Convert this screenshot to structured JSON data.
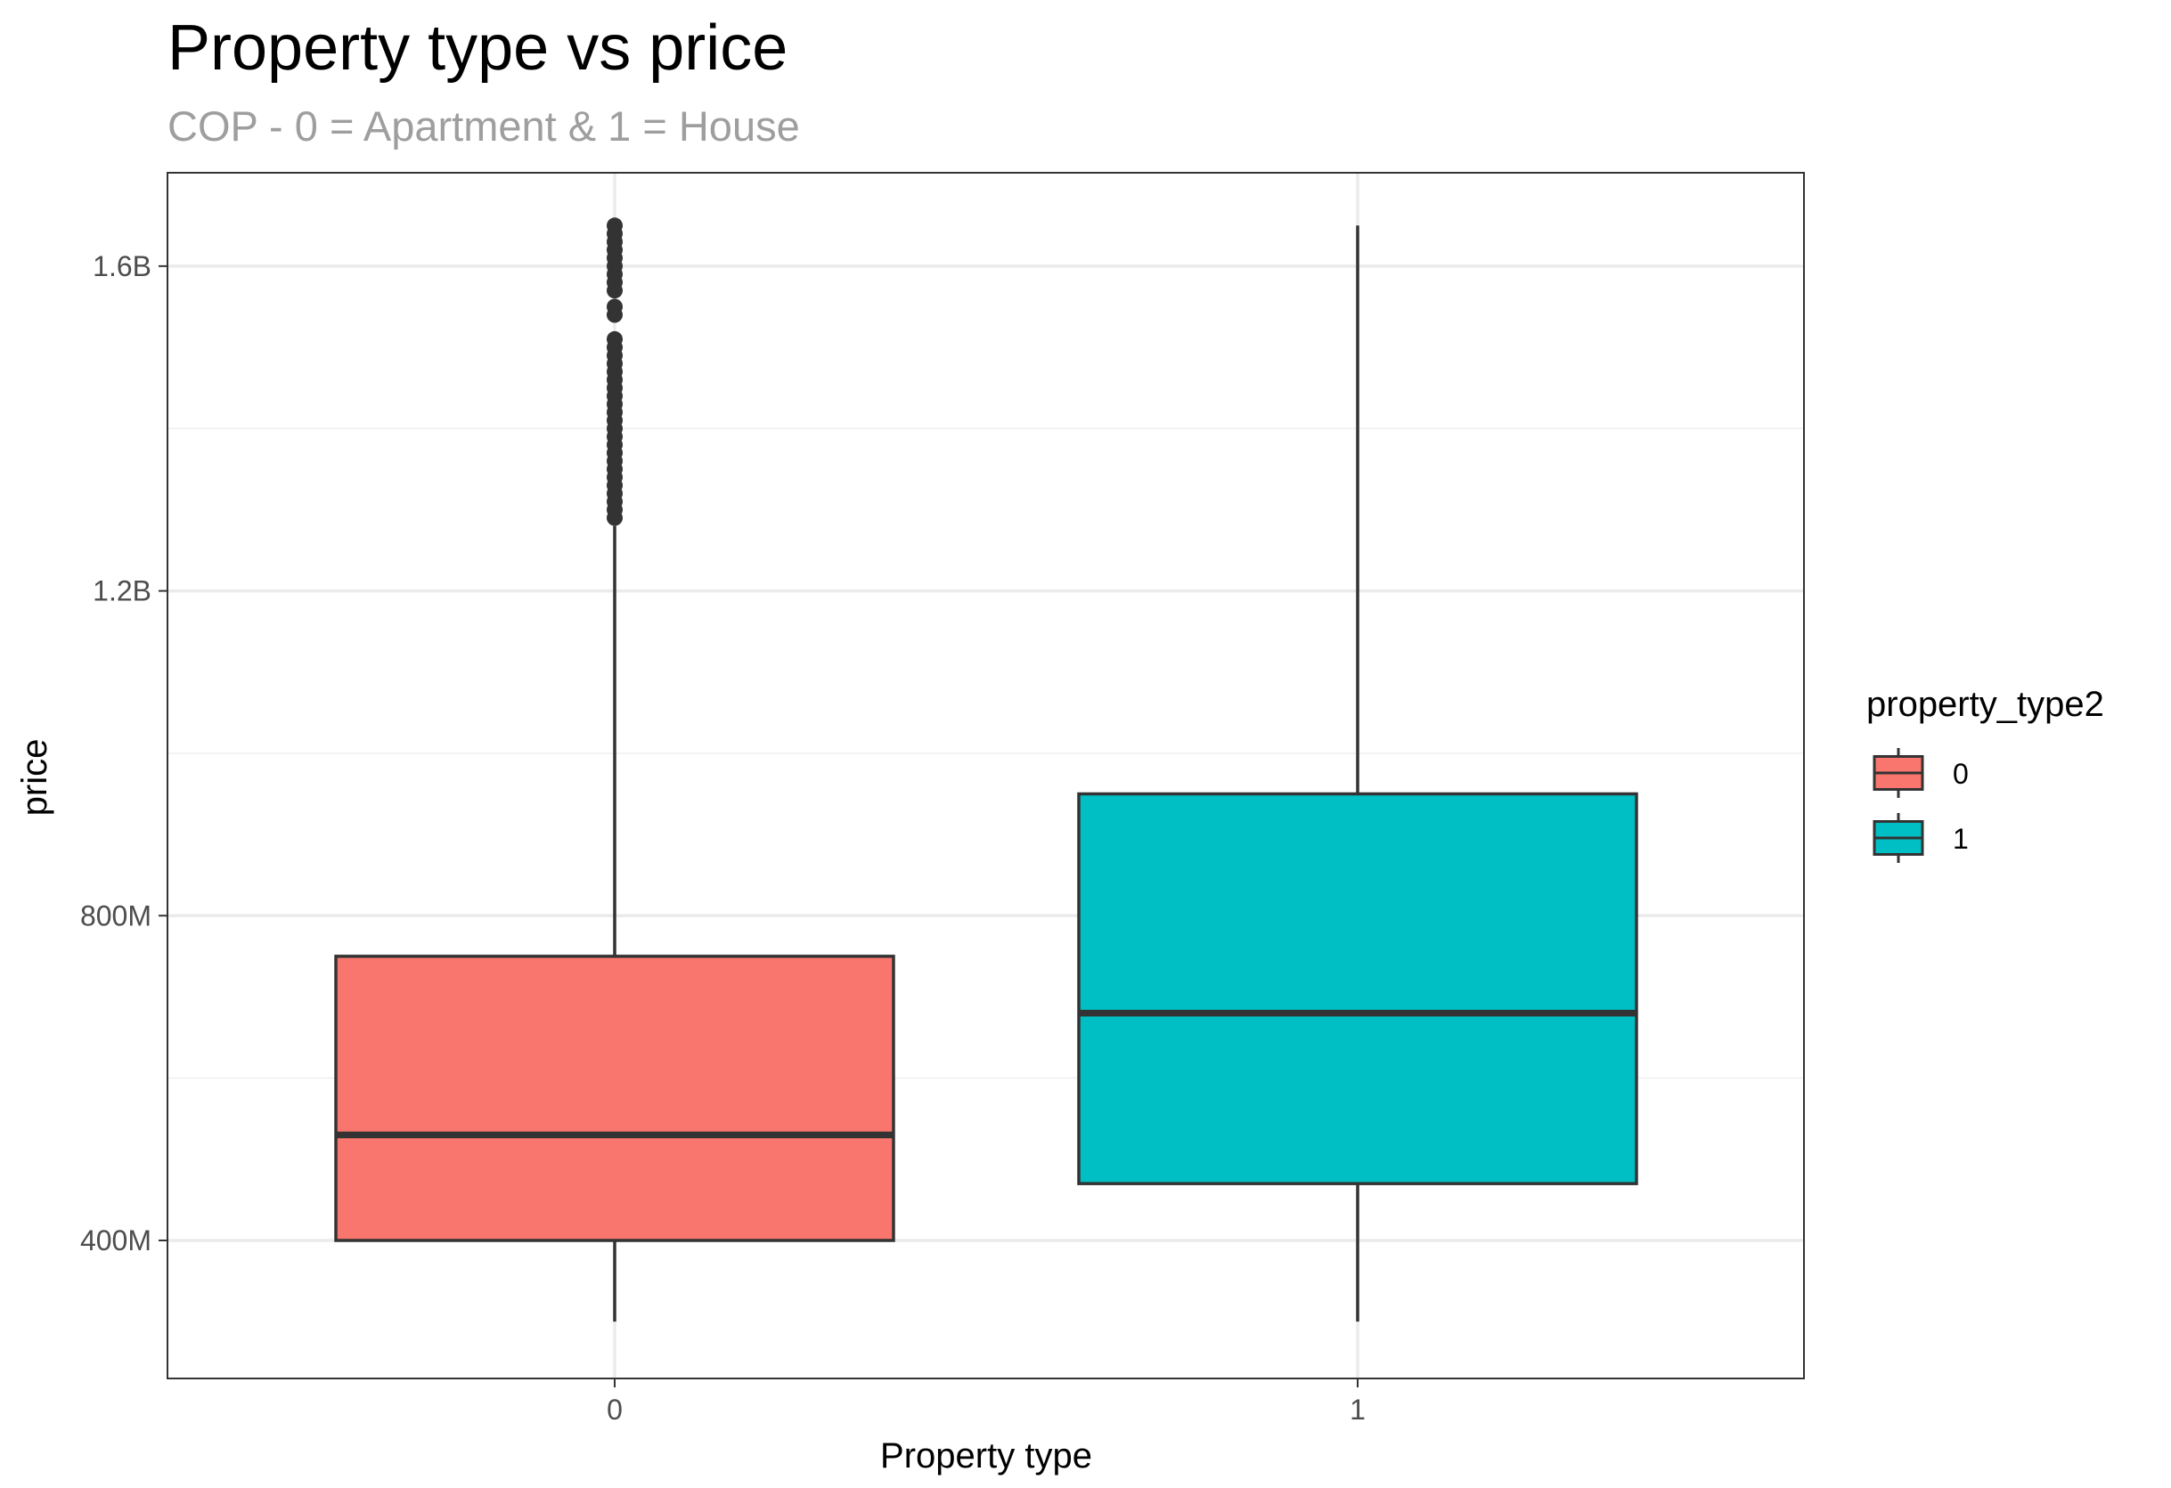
{
  "chart_data": {
    "type": "boxplot",
    "title": "Property type vs price",
    "subtitle": "COP - 0 = Apartment & 1 = House",
    "xlabel": "Property type",
    "ylabel": "price",
    "categories": [
      "0",
      "1"
    ],
    "y_ticks": [
      {
        "value": 400000000,
        "label": "400M"
      },
      {
        "value": 800000000,
        "label": "800M"
      },
      {
        "value": 1200000000,
        "label": "1.2B"
      },
      {
        "value": 1600000000,
        "label": "1.6B"
      }
    ],
    "y_minor_ticks": [
      600000000,
      1000000000,
      1400000000
    ],
    "ylim": [
      230000000,
      1715000000
    ],
    "grid": true,
    "legend": {
      "title": "property_type2",
      "placement": "right",
      "entries": [
        {
          "label": "0",
          "color": "#F8766D"
        },
        {
          "label": "1",
          "color": "#00BFC4"
        }
      ]
    },
    "boxes": [
      {
        "category": "0",
        "color": "#F8766D",
        "whisker_low": 300000000,
        "q1": 400000000,
        "median": 530000000,
        "q3": 750000000,
        "whisker_high": 1280000000,
        "outliers": [
          1290000000,
          1300000000,
          1310000000,
          1320000000,
          1330000000,
          1340000000,
          1350000000,
          1360000000,
          1370000000,
          1380000000,
          1390000000,
          1400000000,
          1410000000,
          1420000000,
          1430000000,
          1440000000,
          1450000000,
          1460000000,
          1470000000,
          1480000000,
          1490000000,
          1500000000,
          1510000000,
          1540000000,
          1550000000,
          1570000000,
          1580000000,
          1590000000,
          1600000000,
          1610000000,
          1620000000,
          1630000000,
          1640000000,
          1650000000
        ]
      },
      {
        "category": "1",
        "color": "#00BFC4",
        "whisker_low": 300000000,
        "q1": 470000000,
        "median": 680000000,
        "q3": 950000000,
        "whisker_high": 1650000000,
        "outliers": []
      }
    ]
  }
}
